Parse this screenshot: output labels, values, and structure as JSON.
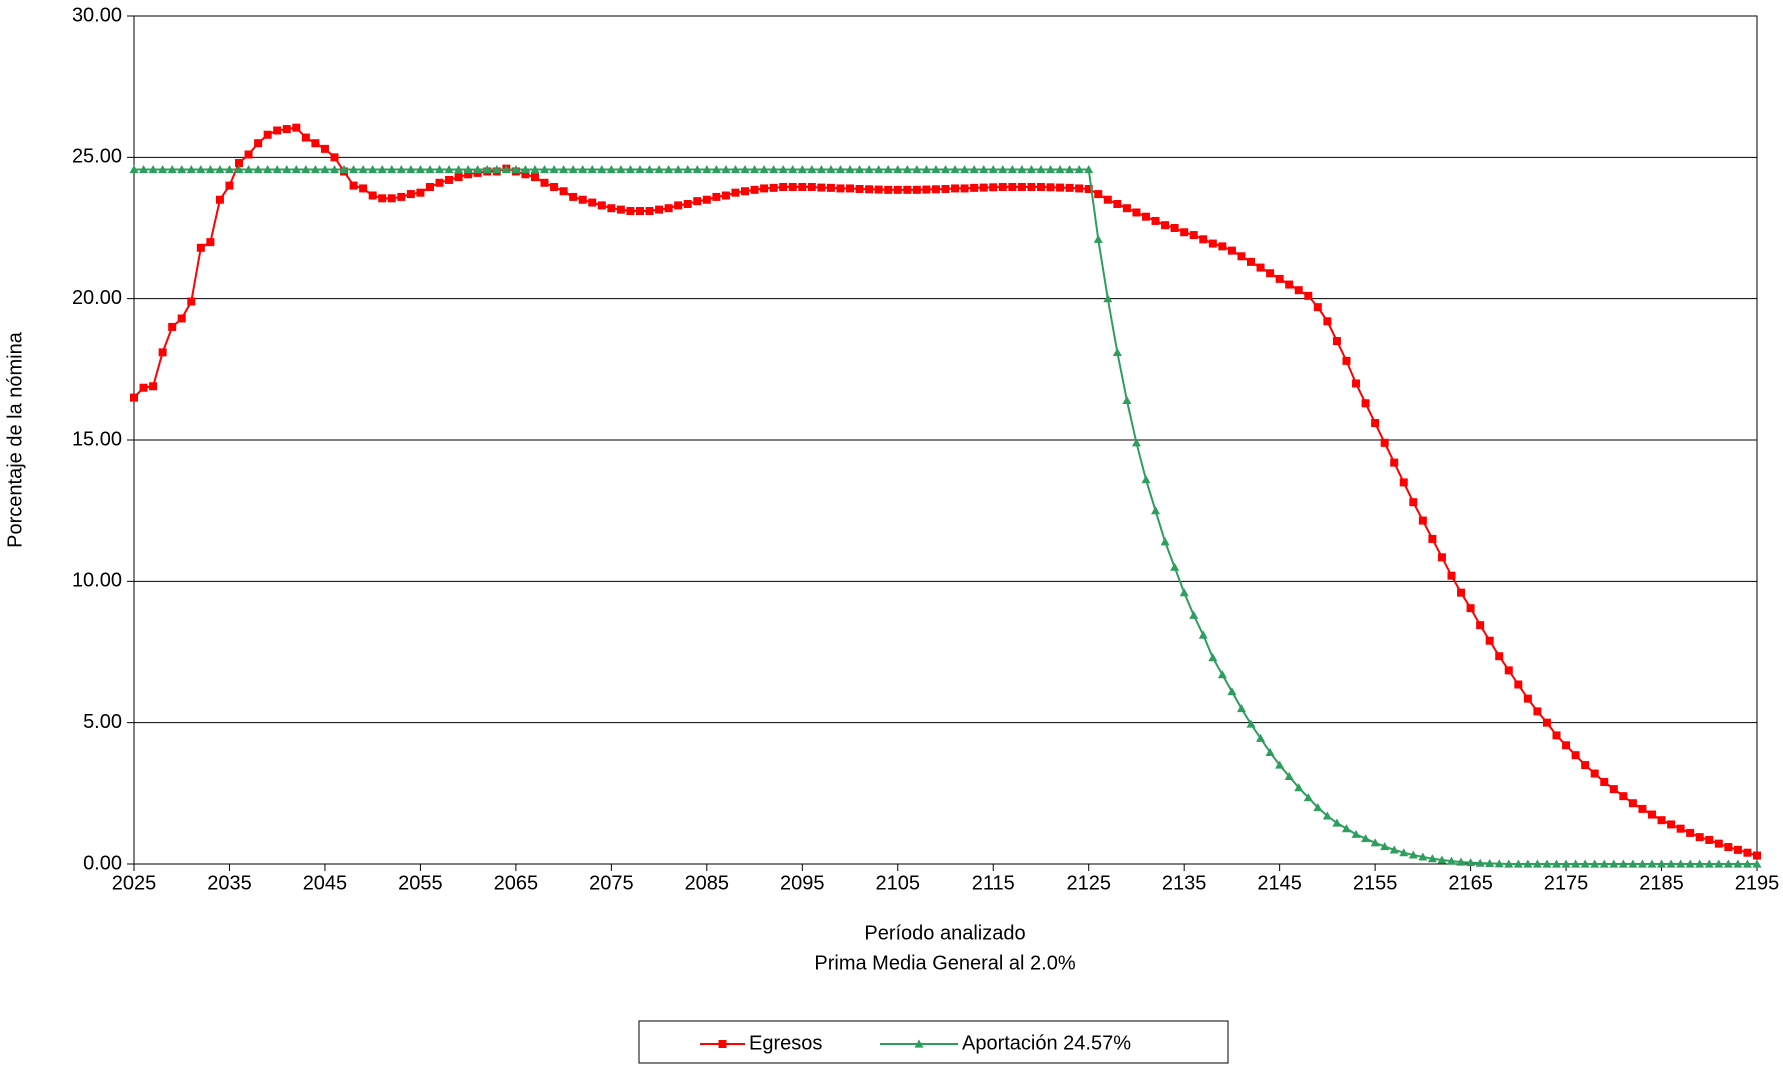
{
  "chart_data": {
    "type": "line",
    "subtitle": "Prima Media General al 2.0%",
    "x_label": "Período analizado",
    "y_label": "Porcentaje de la nómina",
    "x": [
      2025,
      2026,
      2027,
      2028,
      2029,
      2030,
      2031,
      2032,
      2033,
      2034,
      2035,
      2036,
      2037,
      2038,
      2039,
      2040,
      2041,
      2042,
      2043,
      2044,
      2045,
      2046,
      2047,
      2048,
      2049,
      2050,
      2051,
      2052,
      2053,
      2054,
      2055,
      2056,
      2057,
      2058,
      2059,
      2060,
      2061,
      2062,
      2063,
      2064,
      2065,
      2066,
      2067,
      2068,
      2069,
      2070,
      2071,
      2072,
      2073,
      2074,
      2075,
      2076,
      2077,
      2078,
      2079,
      2080,
      2081,
      2082,
      2083,
      2084,
      2085,
      2086,
      2087,
      2088,
      2089,
      2090,
      2091,
      2092,
      2093,
      2094,
      2095,
      2096,
      2097,
      2098,
      2099,
      2100,
      2101,
      2102,
      2103,
      2104,
      2105,
      2106,
      2107,
      2108,
      2109,
      2110,
      2111,
      2112,
      2113,
      2114,
      2115,
      2116,
      2117,
      2118,
      2119,
      2120,
      2121,
      2122,
      2123,
      2124,
      2125,
      2126,
      2127,
      2128,
      2129,
      2130,
      2131,
      2132,
      2133,
      2134,
      2135,
      2136,
      2137,
      2138,
      2139,
      2140,
      2141,
      2142,
      2143,
      2144,
      2145,
      2146,
      2147,
      2148,
      2149,
      2150,
      2151,
      2152,
      2153,
      2154,
      2155,
      2156,
      2157,
      2158,
      2159,
      2160,
      2161,
      2162,
      2163,
      2164,
      2165,
      2166,
      2167,
      2168,
      2169,
      2170,
      2171,
      2172,
      2173,
      2174,
      2175,
      2176,
      2177,
      2178,
      2179,
      2180,
      2181,
      2182,
      2183,
      2184,
      2185,
      2186,
      2187,
      2188,
      2189,
      2190,
      2191,
      2192,
      2193,
      2194,
      2195
    ],
    "series": [
      {
        "name": "Egresos",
        "color": "#ff0000",
        "marker": "square",
        "values": [
          16.5,
          16.85,
          16.9,
          18.1,
          19.0,
          19.3,
          19.9,
          21.8,
          22.0,
          23.5,
          24.0,
          24.8,
          25.1,
          25.5,
          25.8,
          25.95,
          26.0,
          26.05,
          25.7,
          25.5,
          25.3,
          25.0,
          24.5,
          24.0,
          23.9,
          23.65,
          23.55,
          23.55,
          23.6,
          23.7,
          23.75,
          23.95,
          24.1,
          24.2,
          24.3,
          24.4,
          24.45,
          24.5,
          24.5,
          24.6,
          24.5,
          24.4,
          24.3,
          24.1,
          23.95,
          23.8,
          23.6,
          23.5,
          23.4,
          23.3,
          23.2,
          23.15,
          23.1,
          23.1,
          23.1,
          23.15,
          23.2,
          23.3,
          23.35,
          23.45,
          23.5,
          23.6,
          23.65,
          23.75,
          23.8,
          23.85,
          23.9,
          23.92,
          23.95,
          23.95,
          23.95,
          23.95,
          23.93,
          23.92,
          23.9,
          23.9,
          23.88,
          23.87,
          23.86,
          23.85,
          23.85,
          23.85,
          23.85,
          23.86,
          23.87,
          23.88,
          23.9,
          23.9,
          23.92,
          23.93,
          23.94,
          23.95,
          23.95,
          23.95,
          23.95,
          23.95,
          23.94,
          23.93,
          23.92,
          23.9,
          23.88,
          23.7,
          23.5,
          23.35,
          23.2,
          23.05,
          22.9,
          22.75,
          22.6,
          22.5,
          22.35,
          22.25,
          22.1,
          21.95,
          21.85,
          21.7,
          21.5,
          21.3,
          21.1,
          20.9,
          20.7,
          20.5,
          20.3,
          20.1,
          19.7,
          19.2,
          18.5,
          17.8,
          17.0,
          16.3,
          15.6,
          14.9,
          14.2,
          13.5,
          12.8,
          12.15,
          11.5,
          10.85,
          10.2,
          9.6,
          9.05,
          8.45,
          7.9,
          7.35,
          6.85,
          6.35,
          5.85,
          5.4,
          5.0,
          4.55,
          4.2,
          3.85,
          3.5,
          3.2,
          2.9,
          2.65,
          2.4,
          2.15,
          1.95,
          1.75,
          1.55,
          1.4,
          1.25,
          1.1,
          0.95,
          0.85,
          0.72,
          0.6,
          0.5,
          0.4,
          0.3
        ]
      },
      {
        "name": "Aportación 24.57%",
        "color": "#2e9e5e",
        "marker": "triangle",
        "values": [
          24.57,
          24.57,
          24.57,
          24.57,
          24.57,
          24.57,
          24.57,
          24.57,
          24.57,
          24.57,
          24.57,
          24.57,
          24.57,
          24.57,
          24.57,
          24.57,
          24.57,
          24.57,
          24.57,
          24.57,
          24.57,
          24.57,
          24.57,
          24.57,
          24.57,
          24.57,
          24.57,
          24.57,
          24.57,
          24.57,
          24.57,
          24.57,
          24.57,
          24.57,
          24.57,
          24.57,
          24.57,
          24.57,
          24.57,
          24.57,
          24.57,
          24.57,
          24.57,
          24.57,
          24.57,
          24.57,
          24.57,
          24.57,
          24.57,
          24.57,
          24.57,
          24.57,
          24.57,
          24.57,
          24.57,
          24.57,
          24.57,
          24.57,
          24.57,
          24.57,
          24.57,
          24.57,
          24.57,
          24.57,
          24.57,
          24.57,
          24.57,
          24.57,
          24.57,
          24.57,
          24.57,
          24.57,
          24.57,
          24.57,
          24.57,
          24.57,
          24.57,
          24.57,
          24.57,
          24.57,
          24.57,
          24.57,
          24.57,
          24.57,
          24.57,
          24.57,
          24.57,
          24.57,
          24.57,
          24.57,
          24.57,
          24.57,
          24.57,
          24.57,
          24.57,
          24.57,
          24.57,
          24.57,
          24.57,
          24.57,
          24.57,
          22.1,
          20.0,
          18.1,
          16.4,
          14.9,
          13.6,
          12.5,
          11.4,
          10.5,
          9.6,
          8.8,
          8.1,
          7.3,
          6.7,
          6.1,
          5.5,
          4.95,
          4.45,
          3.95,
          3.5,
          3.1,
          2.7,
          2.35,
          2.0,
          1.7,
          1.45,
          1.25,
          1.05,
          0.9,
          0.75,
          0.62,
          0.5,
          0.4,
          0.32,
          0.25,
          0.19,
          0.14,
          0.1,
          0.07,
          0.05,
          0.03,
          0.02,
          0.01,
          0,
          0,
          0,
          0,
          0,
          0,
          0,
          0,
          0,
          0,
          0,
          0,
          0,
          0,
          0,
          0,
          0,
          0,
          0,
          0,
          0,
          0,
          0,
          0,
          0,
          0,
          0
        ]
      }
    ],
    "xlim": [
      2025,
      2195
    ],
    "xticks": [
      2025,
      2035,
      2045,
      2055,
      2065,
      2075,
      2085,
      2095,
      2105,
      2115,
      2125,
      2135,
      2145,
      2155,
      2165,
      2175,
      2185,
      2195
    ],
    "ylim": [
      0,
      30
    ],
    "yticks": [
      {
        "value": 0,
        "label": "0.00"
      },
      {
        "value": 5,
        "label": "5.00"
      },
      {
        "value": 10,
        "label": "10.00"
      },
      {
        "value": 15,
        "label": "15.00"
      },
      {
        "value": 20,
        "label": "20.00"
      },
      {
        "value": 25,
        "label": "25.00"
      },
      {
        "value": 30,
        "label": "30.00"
      }
    ],
    "grid": true,
    "legend": "bottom"
  }
}
